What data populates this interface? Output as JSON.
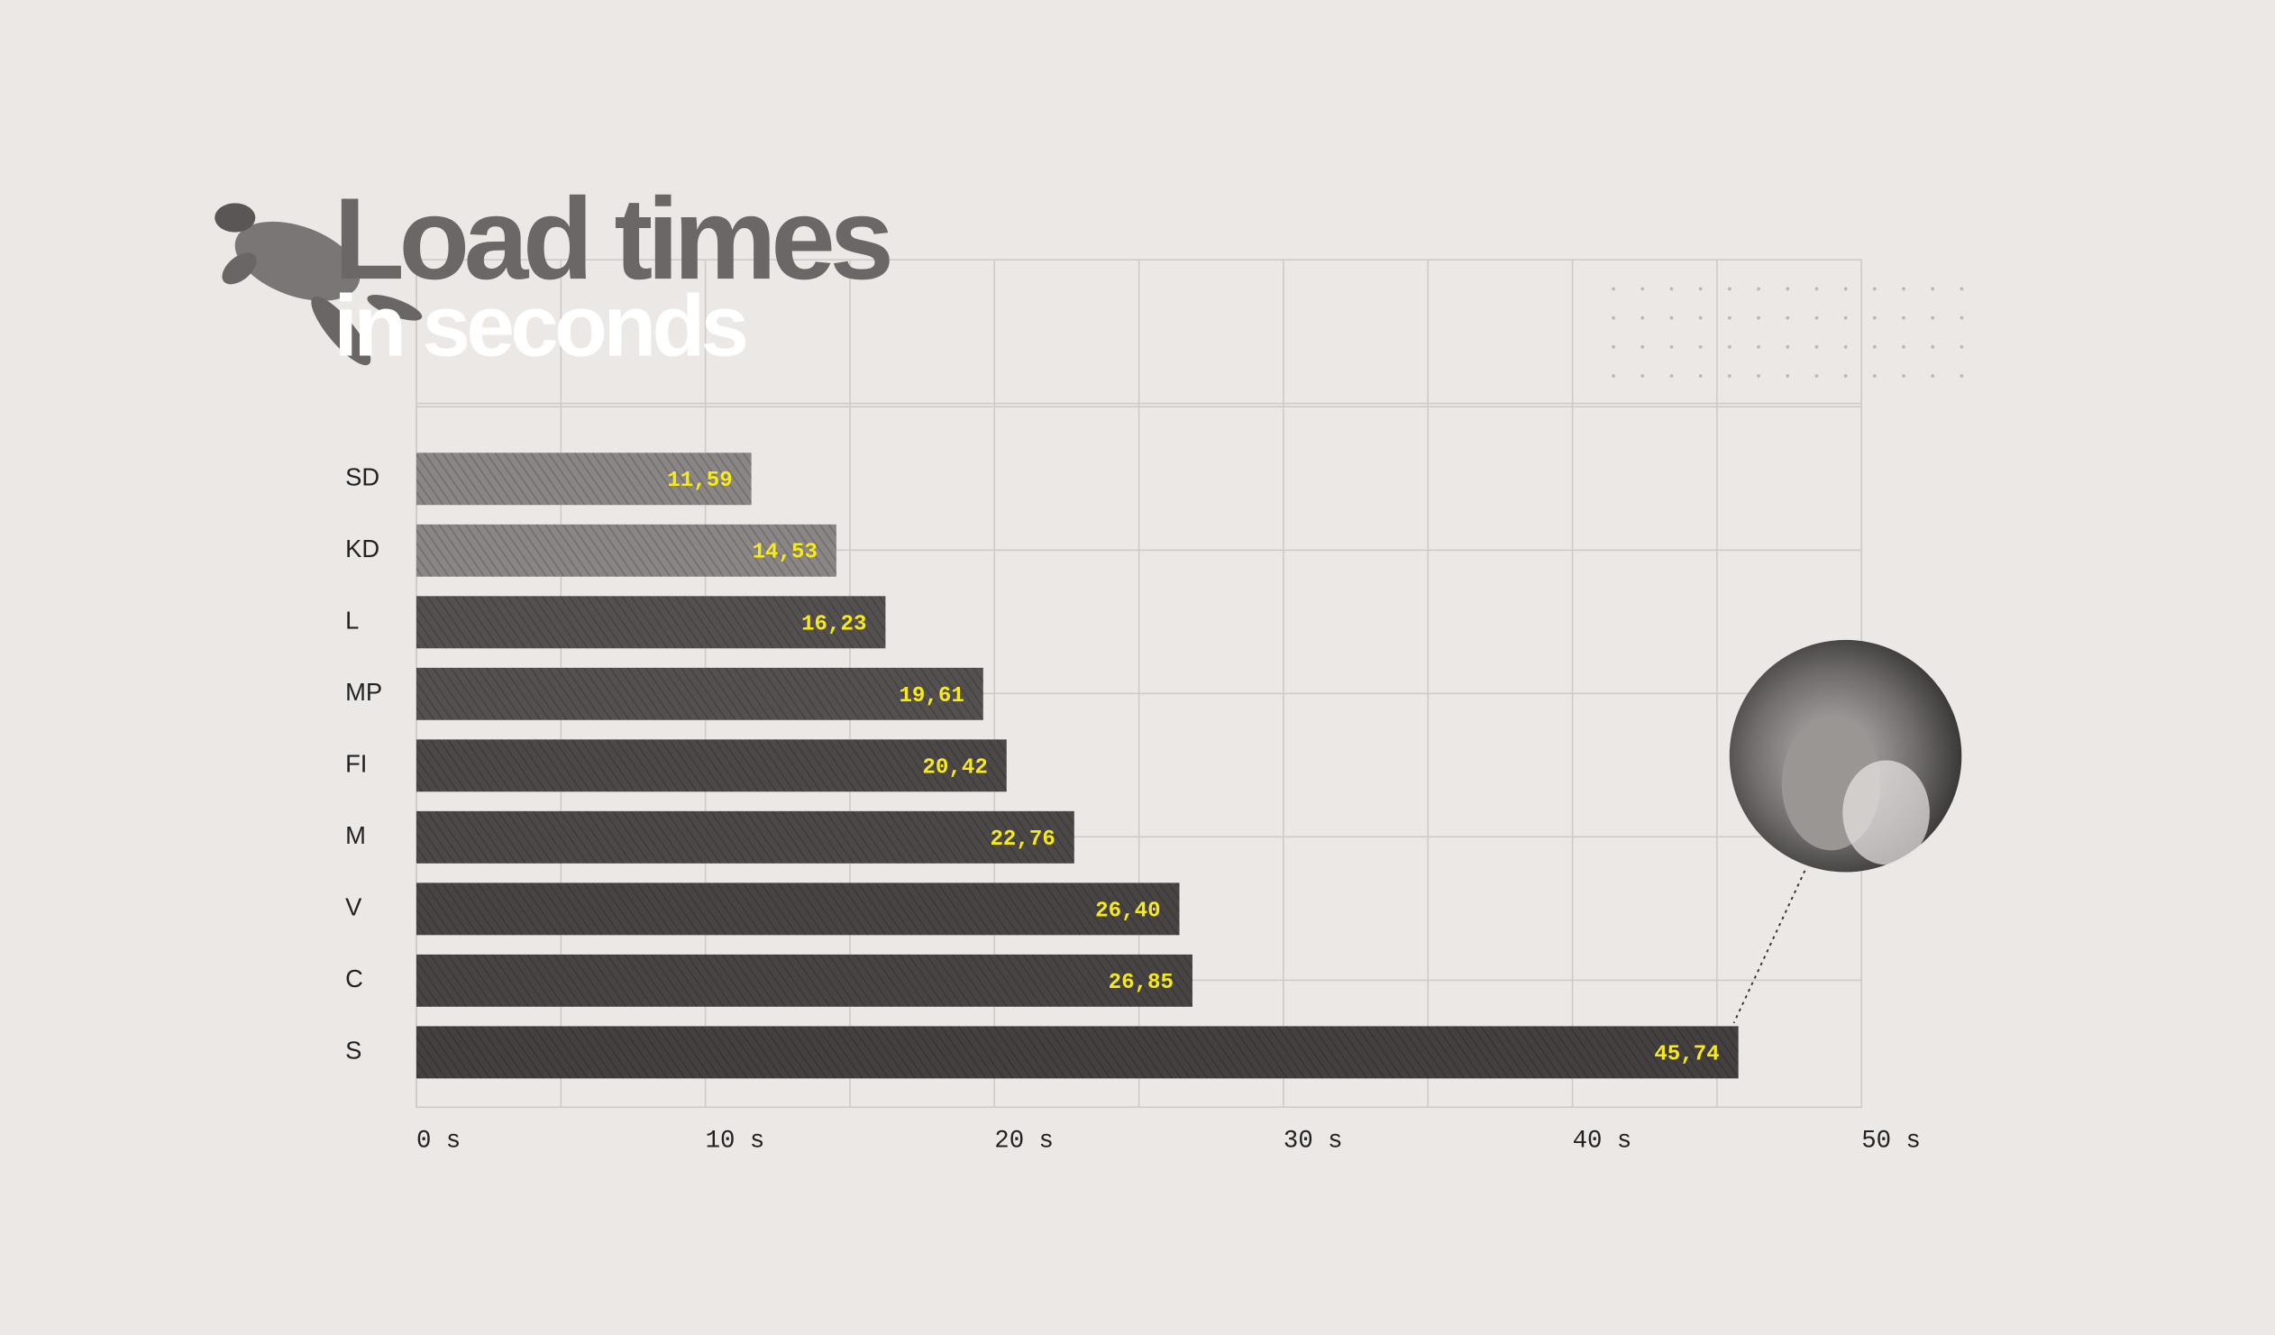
{
  "chart_data": {
    "type": "bar",
    "orientation": "horizontal",
    "title": "Load times",
    "subtitle": "in seconds",
    "categories": [
      "SD",
      "KD",
      "L",
      "MP",
      "FI",
      "M",
      "V",
      "C",
      "S"
    ],
    "values": [
      11.59,
      14.53,
      16.23,
      19.61,
      20.42,
      22.76,
      26.4,
      26.85,
      45.74
    ],
    "value_labels": [
      "11,59",
      "14,53",
      "16,23",
      "19,61",
      "20,42",
      "22,76",
      "26,40",
      "26,85",
      "45,74"
    ],
    "colors": [
      "#8a8685",
      "#8a8685",
      "#545050",
      "#545050",
      "#4c4848",
      "#4c4848",
      "#484444",
      "#484444",
      "#444040"
    ],
    "xlim": [
      0,
      50
    ],
    "xticks": [
      {
        "value": 0,
        "label": "0 s"
      },
      {
        "value": 10,
        "label": "10 s"
      },
      {
        "value": 20,
        "label": "20 s"
      },
      {
        "value": 30,
        "label": "30 s"
      },
      {
        "value": 40,
        "label": "40 s"
      },
      {
        "value": 50,
        "label": "50 s"
      }
    ],
    "minor_xticks": [
      5,
      15,
      25,
      35,
      45
    ],
    "grid": true
  }
}
